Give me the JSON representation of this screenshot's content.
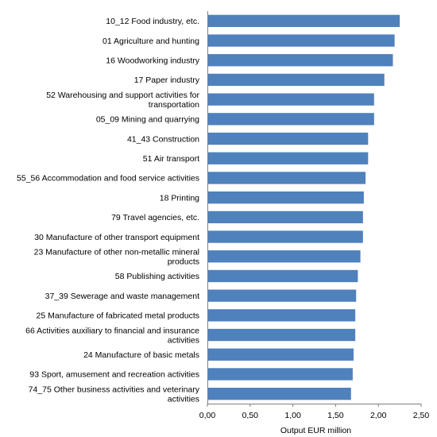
{
  "chart_data": {
    "type": "bar",
    "orientation": "horizontal",
    "categories": [
      [
        "10_12 Food industry, etc."
      ],
      [
        "01 Agriculture and hunting"
      ],
      [
        "16 Woodworking industry"
      ],
      [
        "17 Paper industry"
      ],
      [
        "52 Warehousing and support activities for",
        "transportation"
      ],
      [
        "05_09 Mining and quarrying"
      ],
      [
        "41_43 Construction"
      ],
      [
        "51 Air transport"
      ],
      [
        "55_56 Accommodation and food service activities"
      ],
      [
        "18 Printing"
      ],
      [
        "79 Travel agencies, etc."
      ],
      [
        "30 Manufacture of other transport equipment"
      ],
      [
        "23 Manufacture of other non-metallic mineral",
        "products"
      ],
      [
        "58 Publishing activities"
      ],
      [
        "37_39 Sewerage and waste management"
      ],
      [
        "25 Manufacture of fabricated metal products"
      ],
      [
        "66 Activities auxiliary to financial and insurance",
        "activities"
      ],
      [
        "24 Manufacture of basic metals"
      ],
      [
        "93 Sport, amusement and recreation activities"
      ],
      [
        "74_75 Other business activities and veterinary",
        "activities"
      ]
    ],
    "values": [
      2.25,
      2.19,
      2.17,
      2.07,
      1.95,
      1.95,
      1.88,
      1.88,
      1.85,
      1.83,
      1.82,
      1.82,
      1.79,
      1.76,
      1.74,
      1.73,
      1.73,
      1.71,
      1.7,
      1.68
    ],
    "xlabel": "Output EUR  million",
    "xlim": [
      0,
      2.5
    ],
    "xticks": [
      0,
      0.5,
      1.0,
      1.5,
      2.0,
      2.5
    ],
    "xtick_labels": [
      "0,00",
      "0,50",
      "1,00",
      "1,50",
      "2,00",
      "2,50"
    ],
    "bar_color": "#4f81bd",
    "grid": false
  }
}
